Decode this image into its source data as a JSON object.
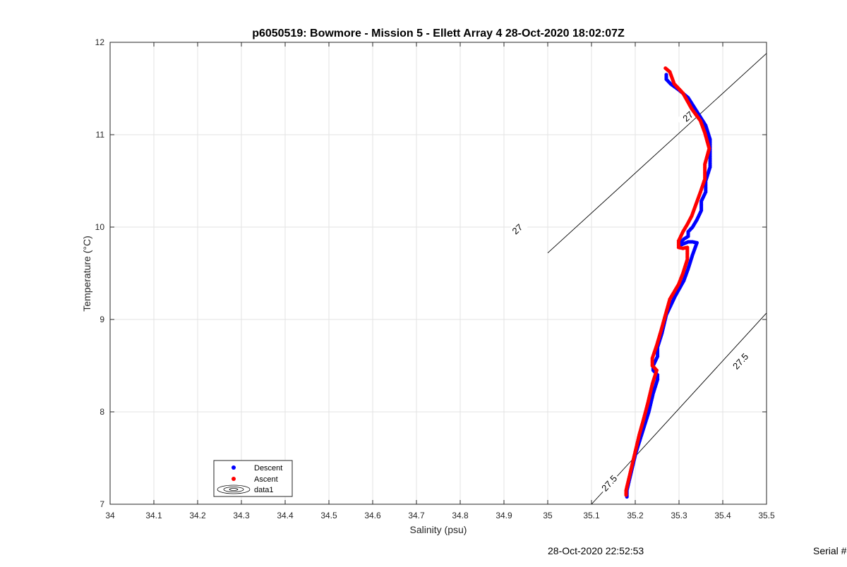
{
  "chart_data": {
    "type": "scatter",
    "title": "p6050519: Bowmore - Mission 5 - Ellett Array 4 28-Oct-2020 18:02:07Z",
    "xlabel": "Salinity (psu)",
    "ylabel": "Temperature (°C)",
    "xlim": [
      34,
      35.5
    ],
    "ylim": [
      7,
      12
    ],
    "xticks": [
      "34",
      "34.1",
      "34.2",
      "34.3",
      "34.4",
      "34.5",
      "34.6",
      "34.7",
      "34.8",
      "34.9",
      "35",
      "35.1",
      "35.2",
      "35.3",
      "35.4",
      "35.5"
    ],
    "yticks": [
      "7",
      "8",
      "9",
      "10",
      "11",
      "12"
    ],
    "grid": true,
    "legend_position": "bottom-left",
    "legend": [
      "Descent",
      "Ascent",
      "data1"
    ],
    "colors": {
      "descent": "#0000ff",
      "ascent": "#ff0000",
      "contour": "#000000",
      "grid": "#e3e3e3"
    },
    "contours": [
      {
        "label": "27",
        "x": [
          35.0,
          35.5
        ],
        "y": [
          9.72,
          11.88
        ],
        "label_positions": [
          [
            34.93,
            9.98
          ],
          [
            35.32,
            11.2
          ]
        ]
      },
      {
        "label": "27.5",
        "x": [
          35.1,
          35.5
        ],
        "y": [
          7.0,
          9.07
        ],
        "label_positions": [
          [
            35.14,
            7.23
          ],
          [
            35.44,
            8.55
          ]
        ]
      }
    ],
    "series": [
      {
        "name": "Descent",
        "x": [
          35.27,
          35.27,
          35.28,
          35.3,
          35.32,
          35.34,
          35.36,
          35.37,
          35.37,
          35.37,
          35.36,
          35.36,
          35.35,
          35.35,
          35.34,
          35.33,
          35.32,
          35.32,
          35.31,
          35.3,
          35.3,
          35.31,
          35.32,
          35.33,
          35.34,
          35.33,
          35.32,
          35.31,
          35.29,
          35.27,
          35.26,
          35.25,
          35.25,
          35.24,
          35.24,
          35.25,
          35.25,
          35.24,
          35.23,
          35.22,
          35.21,
          35.2,
          35.19,
          35.18,
          35.18
        ],
        "y": [
          11.65,
          11.6,
          11.55,
          11.48,
          11.4,
          11.25,
          11.1,
          10.95,
          10.82,
          10.65,
          10.5,
          10.38,
          10.28,
          10.18,
          10.08,
          10.0,
          9.95,
          9.9,
          9.87,
          9.82,
          9.8,
          9.82,
          9.84,
          9.84,
          9.83,
          9.7,
          9.55,
          9.42,
          9.25,
          9.05,
          8.85,
          8.7,
          8.6,
          8.5,
          8.45,
          8.4,
          8.35,
          8.2,
          8.0,
          7.85,
          7.7,
          7.55,
          7.35,
          7.15,
          7.08
        ]
      },
      {
        "name": "Ascent",
        "x": [
          35.27,
          35.28,
          35.29,
          35.31,
          35.33,
          35.35,
          35.36,
          35.37,
          35.36,
          35.36,
          35.35,
          35.34,
          35.33,
          35.32,
          35.31,
          35.3,
          35.3,
          35.31,
          35.32,
          35.32,
          35.32,
          35.31,
          35.3,
          35.28,
          35.27,
          35.26,
          35.25,
          35.24,
          35.24,
          35.25,
          35.24,
          35.23,
          35.22,
          35.21,
          35.2,
          35.19,
          35.18,
          35.18
        ],
        "y": [
          11.72,
          11.68,
          11.55,
          11.45,
          11.28,
          11.15,
          11.02,
          10.85,
          10.68,
          10.52,
          10.38,
          10.25,
          10.12,
          10.03,
          9.95,
          9.85,
          9.78,
          9.77,
          9.78,
          9.75,
          9.65,
          9.5,
          9.38,
          9.22,
          9.05,
          8.88,
          8.72,
          8.58,
          8.5,
          8.45,
          8.3,
          8.1,
          7.92,
          7.75,
          7.55,
          7.35,
          7.15,
          7.1
        ]
      }
    ]
  },
  "footer": {
    "timestamp": "28-Oct-2020 22:52:53",
    "serial": "Serial #"
  }
}
